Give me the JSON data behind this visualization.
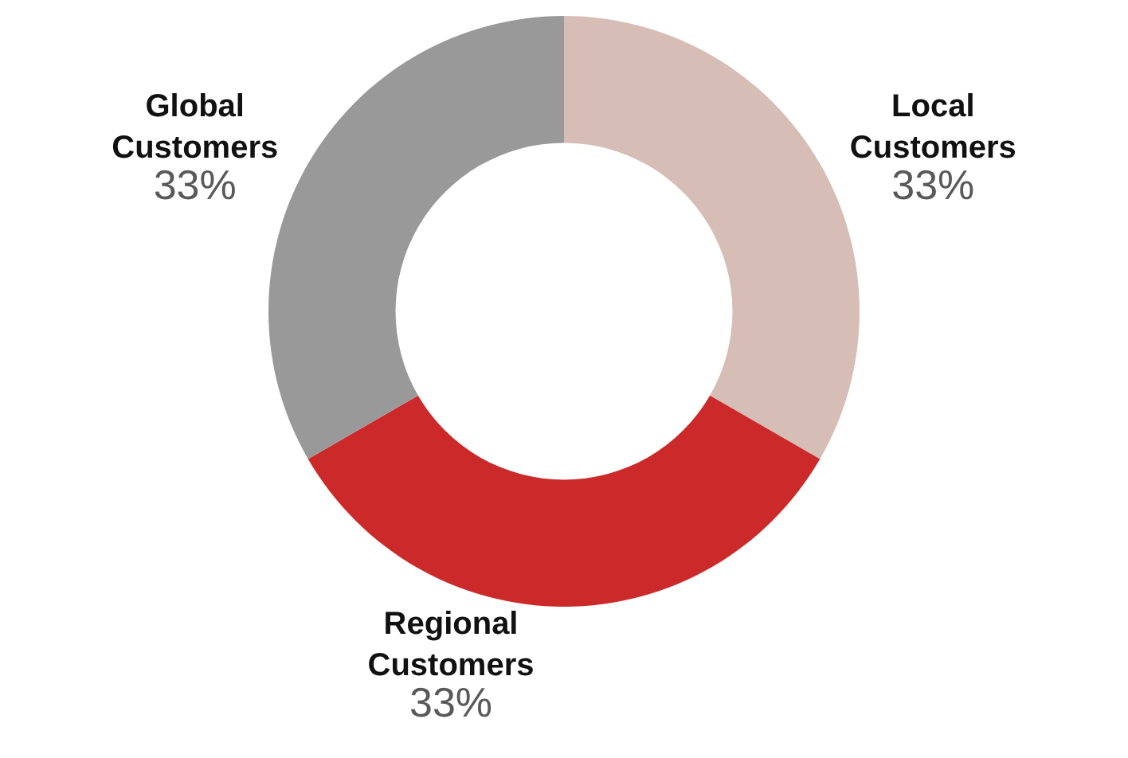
{
  "chart_data": {
    "type": "donut",
    "categories": [
      "Local Customers",
      "Regional Customers",
      "Global Customers"
    ],
    "values": [
      33,
      33,
      33
    ],
    "colors": [
      "#d6bdb5",
      "#cc2a2a",
      "#999999"
    ],
    "value_labels": [
      "33%",
      "33%",
      "33%"
    ]
  }
}
